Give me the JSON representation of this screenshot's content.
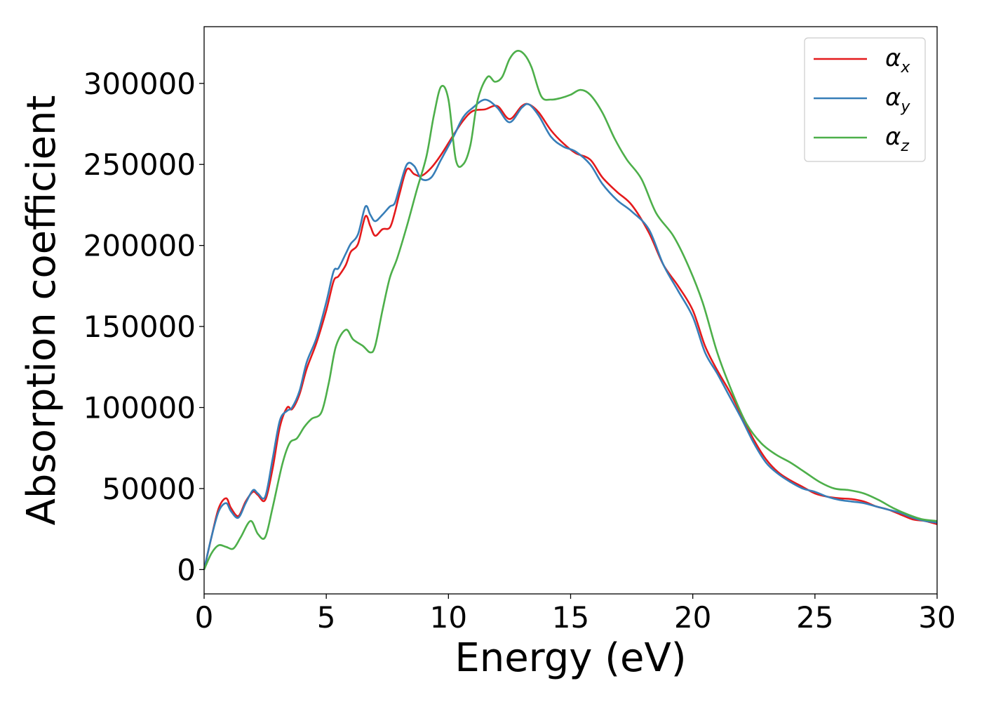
{
  "chart_data": {
    "type": "line",
    "title": "",
    "xlabel": "Energy (eV)",
    "ylabel": "Absorption coefficient",
    "xlim": [
      0,
      30
    ],
    "ylim": [
      -15000,
      335000
    ],
    "xticks": [
      0,
      5,
      10,
      15,
      20,
      25,
      30
    ],
    "xtick_labels": [
      "0",
      "5",
      "10",
      "15",
      "20",
      "25",
      "30"
    ],
    "yticks": [
      0,
      50000,
      100000,
      150000,
      200000,
      250000,
      300000
    ],
    "ytick_labels": [
      "0",
      "50000",
      "100000",
      "150000",
      "200000",
      "250000",
      "300000"
    ],
    "grid": false,
    "legend_position": "top-right",
    "series": [
      {
        "name": "α_x",
        "legend_symbol": "α",
        "legend_subscript": "x",
        "color": "#e41a1c",
        "x": [
          0,
          0.3,
          0.6,
          0.9,
          1.1,
          1.4,
          1.7,
          2.0,
          2.2,
          2.5,
          2.8,
          3.1,
          3.4,
          3.6,
          3.9,
          4.2,
          4.6,
          5.0,
          5.3,
          5.5,
          5.8,
          6.0,
          6.3,
          6.6,
          6.8,
          7.0,
          7.3,
          7.6,
          7.8,
          8.0,
          8.3,
          8.6,
          8.9,
          9.3,
          9.7,
          10.2,
          10.6,
          11.0,
          11.5,
          12.0,
          12.5,
          13.0,
          13.3,
          13.7,
          14.2,
          14.7,
          15.2,
          15.8,
          16.3,
          16.9,
          17.5,
          18.2,
          18.8,
          19.4,
          20.0,
          20.5,
          21.0,
          21.5,
          22.0,
          22.5,
          23.0,
          23.5,
          24.0,
          24.5,
          25.0,
          25.5,
          26.0,
          26.5,
          27.0,
          27.5,
          28.0,
          28.5,
          29.0,
          29.5,
          30.0
        ],
        "y": [
          0,
          20000,
          38000,
          44000,
          38000,
          33000,
          42000,
          48000,
          46000,
          43000,
          62000,
          88000,
          100000,
          99000,
          108000,
          124000,
          140000,
          160000,
          178000,
          181000,
          188000,
          196000,
          201000,
          218000,
          212000,
          206000,
          210000,
          211000,
          220000,
          232000,
          247000,
          244000,
          243000,
          248000,
          256000,
          268000,
          277000,
          283000,
          284000,
          286000,
          278000,
          286000,
          287000,
          282000,
          271000,
          263000,
          257000,
          253000,
          242000,
          233000,
          225000,
          208000,
          188000,
          175000,
          160000,
          138000,
          123000,
          110000,
          95000,
          80000,
          68000,
          60000,
          55000,
          51000,
          47000,
          45000,
          44000,
          43500,
          42000,
          39000,
          37000,
          34000,
          31000,
          30000,
          28000
        ]
      },
      {
        "name": "α_y",
        "legend_symbol": "α",
        "legend_subscript": "y",
        "color": "#377eb8",
        "x": [
          0,
          0.3,
          0.6,
          0.9,
          1.1,
          1.4,
          1.7,
          2.0,
          2.2,
          2.5,
          2.8,
          3.1,
          3.4,
          3.6,
          3.9,
          4.2,
          4.6,
          5.0,
          5.3,
          5.5,
          5.8,
          6.0,
          6.3,
          6.6,
          6.8,
          7.0,
          7.3,
          7.6,
          7.8,
          8.0,
          8.3,
          8.6,
          8.9,
          9.3,
          9.7,
          10.2,
          10.6,
          11.0,
          11.5,
          12.0,
          12.5,
          13.0,
          13.3,
          13.7,
          14.2,
          14.7,
          15.2,
          15.8,
          16.3,
          16.9,
          17.5,
          18.2,
          18.8,
          19.4,
          20.0,
          20.5,
          21.0,
          21.5,
          22.0,
          22.5,
          23.0,
          23.5,
          24.0,
          24.5,
          25.0,
          25.5,
          26.0,
          26.5,
          27.0,
          27.5,
          28.0,
          28.5,
          29.0,
          29.5,
          30.0
        ],
        "y": [
          0,
          20000,
          36000,
          41000,
          36000,
          32000,
          41000,
          49000,
          47000,
          45000,
          68000,
          92000,
          98000,
          100000,
          110000,
          128000,
          143000,
          165000,
          184000,
          186000,
          195000,
          201000,
          207000,
          224000,
          219000,
          215000,
          219000,
          224000,
          226000,
          236000,
          250000,
          249000,
          241000,
          242000,
          253000,
          267000,
          279000,
          285000,
          290000,
          285000,
          276000,
          285000,
          287000,
          280000,
          267000,
          261000,
          258000,
          250000,
          238000,
          228000,
          221000,
          210000,
          188000,
          172000,
          156000,
          134000,
          121000,
          107000,
          93000,
          78000,
          66000,
          59000,
          54000,
          50000,
          48000,
          45000,
          43000,
          42000,
          41000,
          39000,
          37000,
          35000,
          32000,
          30000,
          29000
        ]
      },
      {
        "name": "α_z",
        "legend_symbol": "α",
        "legend_subscript": "z",
        "color": "#4daf4a",
        "x": [
          0,
          0.3,
          0.6,
          0.9,
          1.2,
          1.5,
          1.9,
          2.2,
          2.5,
          2.8,
          3.2,
          3.5,
          3.8,
          4.1,
          4.4,
          4.8,
          5.1,
          5.4,
          5.8,
          6.1,
          6.5,
          6.8,
          7.0,
          7.3,
          7.6,
          7.9,
          8.3,
          8.7,
          9.1,
          9.4,
          9.7,
          10.0,
          10.3,
          10.6,
          10.9,
          11.2,
          11.6,
          11.9,
          12.2,
          12.5,
          12.8,
          13.1,
          13.4,
          13.8,
          14.2,
          14.6,
          15.0,
          15.4,
          15.8,
          16.3,
          16.8,
          17.3,
          17.9,
          18.5,
          19.2,
          19.8,
          20.4,
          21.0,
          21.6,
          22.2,
          22.8,
          23.4,
          24.0,
          24.6,
          25.2,
          25.8,
          26.4,
          27.0,
          27.6,
          28.2,
          28.8,
          29.4,
          30.0
        ],
        "y": [
          0,
          10000,
          15000,
          14000,
          13000,
          20000,
          30000,
          22000,
          20000,
          38000,
          65000,
          78000,
          81000,
          88000,
          93000,
          97000,
          115000,
          138000,
          148000,
          142000,
          138000,
          134000,
          138000,
          160000,
          180000,
          192000,
          212000,
          234000,
          255000,
          280000,
          298000,
          290000,
          253000,
          250000,
          262000,
          290000,
          304000,
          301000,
          304000,
          315000,
          320000,
          318000,
          310000,
          292000,
          290000,
          291000,
          293000,
          296000,
          293000,
          282000,
          266000,
          253000,
          241000,
          220000,
          206000,
          188000,
          165000,
          134000,
          110000,
          90000,
          78000,
          71000,
          66000,
          60000,
          54000,
          50000,
          49000,
          47000,
          43000,
          38000,
          34000,
          31000,
          30000
        ]
      }
    ]
  }
}
